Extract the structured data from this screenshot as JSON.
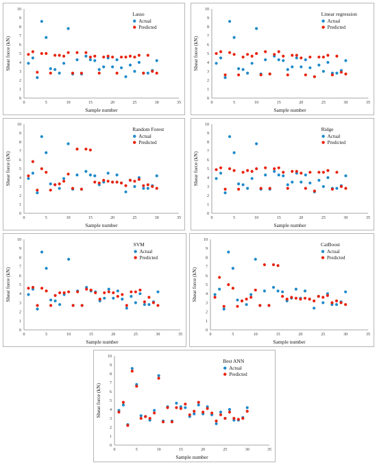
{
  "colors": {
    "actual": "#1f8ac9",
    "predicted": "#e8230e",
    "axis": "#888888"
  },
  "chart_data": [
    {
      "type": "scatter",
      "title": "Lasso",
      "xlabel": "Sample number",
      "ylabel": "Shear force (kN)",
      "xlim": [
        0,
        35
      ],
      "ylim": [
        0,
        10
      ],
      "xticks": [
        0,
        5,
        10,
        15,
        20,
        25,
        30,
        35
      ],
      "yticks": [
        0,
        1,
        2,
        3,
        4,
        5,
        6,
        7,
        8,
        9,
        10
      ],
      "legend_position": "top-right",
      "series": [
        {
          "name": "Actual",
          "x": [
            1,
            2,
            3,
            4,
            5,
            6,
            7,
            8,
            9,
            10,
            11,
            12,
            13,
            14,
            15,
            16,
            17,
            18,
            19,
            20,
            21,
            22,
            23,
            24,
            25,
            26,
            27,
            28,
            29,
            30
          ],
          "y": [
            3.9,
            4.5,
            2.3,
            8.6,
            6.8,
            3.3,
            3.2,
            2.8,
            3.9,
            7.8,
            2.7,
            4.3,
            2.7,
            4.7,
            4.3,
            4.2,
            3.2,
            3.5,
            4.5,
            3.5,
            4.3,
            3.4,
            2.4,
            3.7,
            3.0,
            4.0,
            2.8,
            2.8,
            3.1,
            4.2
          ]
        },
        {
          "name": "Predicted",
          "x": [
            1,
            2,
            3,
            4,
            5,
            6,
            7,
            8,
            9,
            10,
            11,
            12,
            13,
            14,
            15,
            16,
            17,
            18,
            19,
            20,
            21,
            22,
            23,
            24,
            25,
            26,
            27,
            28,
            29,
            30
          ],
          "y": [
            4.9,
            5.2,
            2.9,
            5.0,
            5.0,
            2.8,
            4.8,
            4.8,
            4.7,
            5.1,
            2.8,
            5.1,
            2.8,
            5.1,
            4.6,
            4.7,
            2.8,
            4.6,
            4.7,
            4.6,
            2.8,
            4.6,
            4.6,
            4.7,
            4.6,
            4.8,
            2.8,
            4.8,
            3.0,
            2.8
          ]
        }
      ]
    },
    {
      "type": "scatter",
      "title": "Linear regression",
      "xlabel": "Sample number",
      "ylabel": "Shear force (kN)",
      "xlim": [
        0,
        35
      ],
      "ylim": [
        0,
        10
      ],
      "xticks": [
        0,
        5,
        10,
        15,
        20,
        25,
        30,
        35
      ],
      "yticks": [
        0,
        1,
        2,
        3,
        4,
        5,
        6,
        7,
        8,
        9,
        10
      ],
      "legend_position": "top-right",
      "series": [
        {
          "name": "Actual",
          "x": [
            1,
            2,
            3,
            4,
            5,
            6,
            7,
            8,
            9,
            10,
            11,
            12,
            13,
            14,
            15,
            16,
            17,
            18,
            19,
            20,
            21,
            22,
            23,
            24,
            25,
            26,
            27,
            28,
            29,
            30
          ],
          "y": [
            3.9,
            4.5,
            2.3,
            8.6,
            6.8,
            3.3,
            3.2,
            2.8,
            3.9,
            7.8,
            2.7,
            4.3,
            2.7,
            4.7,
            4.3,
            4.2,
            3.2,
            3.5,
            4.5,
            3.5,
            4.3,
            3.4,
            2.4,
            3.7,
            3.0,
            4.0,
            2.8,
            2.8,
            3.1,
            4.2
          ]
        },
        {
          "name": "Predicted",
          "x": [
            1,
            2,
            3,
            4,
            5,
            6,
            7,
            8,
            9,
            10,
            11,
            12,
            13,
            14,
            15,
            16,
            17,
            18,
            19,
            20,
            21,
            22,
            23,
            24,
            25,
            26,
            27,
            28,
            29,
            30
          ],
          "y": [
            5.0,
            5.2,
            2.6,
            5.1,
            4.9,
            2.6,
            4.6,
            4.9,
            4.7,
            5.0,
            2.6,
            5.2,
            2.7,
            4.9,
            5.2,
            4.7,
            2.6,
            4.8,
            4.8,
            4.5,
            2.6,
            4.6,
            2.4,
            4.6,
            4.6,
            4.8,
            2.6,
            4.7,
            2.9,
            2.7
          ]
        }
      ]
    },
    {
      "type": "scatter",
      "title": "Random Forest",
      "xlabel": "Sample number",
      "ylabel": "Shear force (kN)",
      "xlim": [
        0,
        35
      ],
      "ylim": [
        0,
        10
      ],
      "xticks": [
        0,
        5,
        10,
        15,
        20,
        25,
        30,
        35
      ],
      "yticks": [
        0,
        1,
        2,
        3,
        4,
        5,
        6,
        7,
        8,
        9,
        10
      ],
      "legend_position": "top-right",
      "series": [
        {
          "name": "Actual",
          "x": [
            1,
            2,
            3,
            4,
            5,
            6,
            7,
            8,
            9,
            10,
            11,
            12,
            13,
            14,
            15,
            16,
            17,
            18,
            19,
            20,
            21,
            22,
            23,
            24,
            25,
            26,
            27,
            28,
            29,
            30
          ],
          "y": [
            3.9,
            4.5,
            2.3,
            8.6,
            6.8,
            3.3,
            3.2,
            2.8,
            3.9,
            7.8,
            2.7,
            4.3,
            2.7,
            4.7,
            4.3,
            4.2,
            3.2,
            3.5,
            4.5,
            3.5,
            4.3,
            3.4,
            2.4,
            3.7,
            3.0,
            4.0,
            2.8,
            2.8,
            3.1,
            4.2
          ]
        },
        {
          "name": "Predicted",
          "x": [
            1,
            2,
            3,
            4,
            5,
            6,
            7,
            8,
            9,
            10,
            11,
            12,
            13,
            14,
            15,
            16,
            17,
            18,
            19,
            20,
            21,
            22,
            23,
            24,
            25,
            26,
            27,
            28,
            29,
            30
          ],
          "y": [
            4.2,
            5.8,
            2.6,
            5.0,
            4.6,
            2.6,
            3.2,
            3.3,
            3.6,
            4.4,
            2.8,
            7.2,
            2.7,
            7.2,
            7.1,
            3.5,
            3.4,
            3.7,
            3.6,
            3.5,
            3.5,
            3.4,
            3.1,
            3.7,
            3.6,
            3.8,
            3.1,
            3.2,
            3.0,
            2.8
          ]
        }
      ]
    },
    {
      "type": "scatter",
      "title": "Ridge",
      "xlabel": "Sample number",
      "ylabel": "Shear force (kN)",
      "xlim": [
        0,
        35
      ],
      "ylim": [
        0,
        10
      ],
      "xticks": [
        0,
        5,
        10,
        15,
        20,
        25,
        30,
        35
      ],
      "yticks": [
        0,
        1,
        2,
        3,
        4,
        5,
        6,
        7,
        8,
        9,
        10
      ],
      "legend_position": "top-right",
      "series": [
        {
          "name": "Actual",
          "x": [
            1,
            2,
            3,
            4,
            5,
            6,
            7,
            8,
            9,
            10,
            11,
            12,
            13,
            14,
            15,
            16,
            17,
            18,
            19,
            20,
            21,
            22,
            23,
            24,
            25,
            26,
            27,
            28,
            29,
            30
          ],
          "y": [
            3.9,
            4.5,
            2.3,
            8.6,
            6.8,
            3.3,
            3.2,
            2.8,
            3.9,
            7.8,
            2.7,
            4.3,
            2.7,
            4.7,
            4.3,
            4.2,
            3.2,
            3.5,
            4.5,
            3.5,
            4.3,
            3.4,
            2.4,
            3.7,
            3.0,
            4.0,
            2.8,
            2.8,
            3.1,
            4.2
          ]
        },
        {
          "name": "Predicted",
          "x": [
            1,
            2,
            3,
            4,
            5,
            6,
            7,
            8,
            9,
            10,
            11,
            12,
            13,
            14,
            15,
            16,
            17,
            18,
            19,
            20,
            21,
            22,
            23,
            24,
            25,
            26,
            27,
            28,
            29,
            30
          ],
          "y": [
            4.9,
            5.1,
            2.7,
            5.0,
            4.8,
            2.7,
            4.6,
            4.8,
            4.7,
            5.0,
            2.8,
            5.1,
            2.8,
            5.0,
            5.1,
            4.6,
            2.8,
            4.7,
            4.7,
            4.5,
            2.8,
            4.6,
            2.5,
            4.6,
            4.6,
            4.8,
            2.7,
            4.6,
            3.0,
            2.8
          ]
        }
      ]
    },
    {
      "type": "scatter",
      "title": "SVM",
      "xlabel": "Sample number",
      "ylabel": "Shear force (kN)",
      "xlim": [
        0,
        35
      ],
      "ylim": [
        0,
        10
      ],
      "xticks": [
        0,
        5,
        10,
        15,
        20,
        25,
        30,
        35
      ],
      "yticks": [
        0,
        1,
        2,
        3,
        4,
        5,
        6,
        7,
        8,
        9,
        10
      ],
      "legend_position": "top-right",
      "series": [
        {
          "name": "Actual",
          "x": [
            1,
            2,
            3,
            4,
            5,
            6,
            7,
            8,
            9,
            10,
            11,
            12,
            13,
            14,
            15,
            16,
            17,
            18,
            19,
            20,
            21,
            22,
            23,
            24,
            25,
            26,
            27,
            28,
            29,
            30
          ],
          "y": [
            3.9,
            4.5,
            2.3,
            8.6,
            6.8,
            3.3,
            3.2,
            2.8,
            3.9,
            7.8,
            2.7,
            4.3,
            2.7,
            4.7,
            4.3,
            4.2,
            3.2,
            3.5,
            4.5,
            3.5,
            4.3,
            3.4,
            2.4,
            3.7,
            3.0,
            4.0,
            2.8,
            2.8,
            3.1,
            4.2
          ]
        },
        {
          "name": "Predicted",
          "x": [
            1,
            2,
            3,
            4,
            5,
            6,
            7,
            8,
            9,
            10,
            11,
            12,
            13,
            14,
            15,
            16,
            17,
            18,
            19,
            20,
            21,
            22,
            23,
            24,
            25,
            26,
            27,
            28,
            29,
            30
          ],
          "y": [
            4.6,
            4.7,
            2.7,
            4.6,
            4.3,
            2.7,
            3.8,
            4.1,
            4.1,
            4.2,
            2.7,
            4.2,
            2.7,
            4.5,
            4.4,
            4.1,
            3.4,
            4.1,
            4.2,
            4.1,
            3.7,
            3.9,
            2.7,
            4.2,
            4.2,
            4.4,
            3.1,
            3.6,
            3.0,
            2.7
          ]
        }
      ]
    },
    {
      "type": "scatter",
      "title": "CatBoost",
      "xlabel": "Sample number",
      "ylabel": "Shear force (kN)",
      "xlim": [
        0,
        35
      ],
      "ylim": [
        0,
        10
      ],
      "xticks": [
        0,
        5,
        10,
        15,
        20,
        25,
        30,
        35
      ],
      "yticks": [
        0,
        1,
        2,
        3,
        4,
        5,
        6,
        7,
        8,
        9,
        10
      ],
      "legend_position": "top-right",
      "series": [
        {
          "name": "Actual",
          "x": [
            1,
            2,
            3,
            4,
            5,
            6,
            7,
            8,
            9,
            10,
            11,
            12,
            13,
            14,
            15,
            16,
            17,
            18,
            19,
            20,
            21,
            22,
            23,
            24,
            25,
            26,
            27,
            28,
            29,
            30
          ],
          "y": [
            3.9,
            4.5,
            2.3,
            8.6,
            6.8,
            3.3,
            3.2,
            2.8,
            3.9,
            7.8,
            2.7,
            4.3,
            2.7,
            4.7,
            4.3,
            4.2,
            3.2,
            3.5,
            4.5,
            3.5,
            4.3,
            3.4,
            2.4,
            3.7,
            3.0,
            4.0,
            2.8,
            2.8,
            3.1,
            4.2
          ]
        },
        {
          "name": "Predicted",
          "x": [
            1,
            2,
            3,
            4,
            5,
            6,
            7,
            8,
            9,
            10,
            11,
            12,
            13,
            14,
            15,
            16,
            17,
            18,
            19,
            20,
            21,
            22,
            23,
            24,
            25,
            26,
            27,
            28,
            29,
            30
          ],
          "y": [
            3.6,
            5.8,
            2.6,
            5.0,
            4.6,
            2.6,
            3.2,
            3.4,
            3.6,
            4.4,
            2.7,
            7.2,
            2.7,
            7.2,
            7.1,
            3.7,
            3.4,
            3.6,
            3.5,
            3.4,
            3.5,
            3.4,
            3.2,
            3.7,
            3.6,
            3.8,
            3.0,
            3.2,
            3.0,
            2.8
          ]
        }
      ]
    },
    {
      "type": "scatter",
      "title": "Best ANN",
      "xlabel": "Sample number",
      "ylabel": "Shear force (kN)",
      "xlim": [
        0,
        35
      ],
      "ylim": [
        0,
        10
      ],
      "xticks": [
        0,
        5,
        10,
        15,
        20,
        25,
        30,
        35
      ],
      "yticks": [
        0,
        1,
        2,
        3,
        4,
        5,
        6,
        7,
        8,
        9,
        10
      ],
      "legend_position": "top-right",
      "series": [
        {
          "name": "Actual",
          "x": [
            1,
            2,
            3,
            4,
            5,
            6,
            7,
            8,
            9,
            10,
            11,
            12,
            13,
            14,
            15,
            16,
            17,
            18,
            19,
            20,
            21,
            22,
            23,
            24,
            25,
            26,
            27,
            28,
            29,
            30
          ],
          "y": [
            3.9,
            4.5,
            2.3,
            8.6,
            6.8,
            3.3,
            3.2,
            2.8,
            3.9,
            7.8,
            2.7,
            4.3,
            2.7,
            4.7,
            4.3,
            4.2,
            3.2,
            3.5,
            4.5,
            3.5,
            4.3,
            3.4,
            2.4,
            3.7,
            3.0,
            4.0,
            2.8,
            2.8,
            3.1,
            4.2
          ]
        },
        {
          "name": "Predicted",
          "x": [
            1,
            2,
            3,
            4,
            5,
            6,
            7,
            8,
            9,
            10,
            11,
            12,
            13,
            14,
            15,
            16,
            17,
            18,
            19,
            20,
            21,
            22,
            23,
            24,
            25,
            26,
            27,
            28,
            29,
            30
          ],
          "y": [
            3.7,
            4.8,
            2.2,
            8.3,
            6.6,
            3.0,
            3.2,
            3.0,
            3.6,
            7.5,
            2.6,
            4.2,
            2.6,
            4.2,
            4.1,
            4.6,
            3.4,
            3.8,
            4.8,
            3.7,
            4.1,
            3.6,
            2.7,
            3.4,
            3.0,
            3.7,
            3.0,
            2.9,
            3.0,
            3.8
          ]
        }
      ]
    }
  ]
}
